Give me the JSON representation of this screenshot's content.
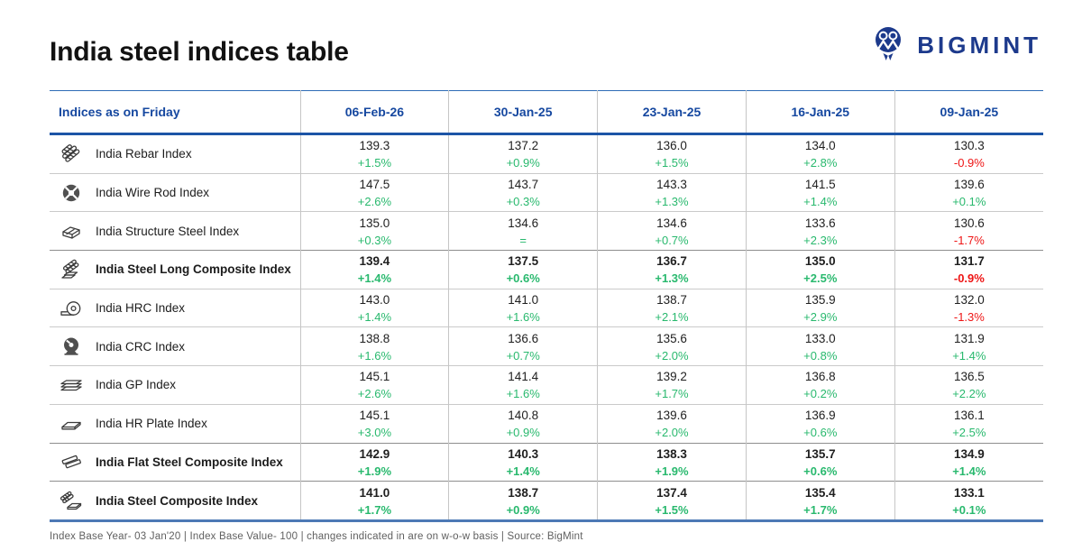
{
  "title": "India steel indices table",
  "logo_text": "BIGMINT",
  "footnote": "Index Base Year- 03 Jan'20 | Index Base Value- 100 | changes indicated in are on w-o-w basis | Source: BigMint",
  "colors": {
    "brand_blue": "#1d3a8c",
    "header_blue": "#1648a0",
    "positive_green": "#29b96e",
    "negative_red": "#ee1515"
  },
  "chart_data": {
    "type": "table",
    "title": "India steel indices table",
    "header": {
      "label": "Indices as on Friday",
      "dates": [
        "06-Feb-26",
        "30-Jan-25",
        "23-Jan-25",
        "16-Jan-25",
        "09-Jan-25"
      ]
    },
    "rows": [
      {
        "label": "India Rebar Index",
        "icon": "rebar-icon",
        "bold": false,
        "values": [
          139.3,
          137.2,
          136.0,
          134.0,
          130.3
        ],
        "changes": [
          "+1.5%",
          "+0.9%",
          "+1.5%",
          "+2.8%",
          "-0.9%"
        ]
      },
      {
        "label": "India Wire Rod Index",
        "icon": "wire-rod-coil-icon",
        "bold": false,
        "values": [
          147.5,
          143.7,
          143.3,
          141.5,
          139.6
        ],
        "changes": [
          "+2.6%",
          "+0.3%",
          "+1.3%",
          "+1.4%",
          "+0.1%"
        ]
      },
      {
        "label": "India Structure Steel Index",
        "icon": "structure-steel-icon",
        "bold": false,
        "values": [
          135.0,
          134.6,
          134.6,
          133.6,
          130.6
        ],
        "changes": [
          "+0.3%",
          "=",
          "+0.7%",
          "+2.3%",
          "-1.7%"
        ]
      },
      {
        "label": "India Steel Long Composite Index",
        "icon": "long-steel-stack-icon",
        "bold": true,
        "values": [
          139.4,
          137.5,
          136.7,
          135.0,
          131.7
        ],
        "changes": [
          "+1.4%",
          "+0.6%",
          "+1.3%",
          "+2.5%",
          "-0.9%"
        ]
      },
      {
        "label": "India HRC Index",
        "icon": "hrc-coil-icon",
        "bold": false,
        "values": [
          143.0,
          141.0,
          138.7,
          135.9,
          132.0
        ],
        "changes": [
          "+1.4%",
          "+1.6%",
          "+2.1%",
          "+2.9%",
          "-1.3%"
        ]
      },
      {
        "label": "India CRC Index",
        "icon": "crc-coil-icon",
        "bold": false,
        "values": [
          138.8,
          136.6,
          135.6,
          133.0,
          131.9
        ],
        "changes": [
          "+1.6%",
          "+0.7%",
          "+2.0%",
          "+0.8%",
          "+1.4%"
        ]
      },
      {
        "label": "India GP Index",
        "icon": "gp-sheets-icon",
        "bold": false,
        "values": [
          145.1,
          141.4,
          139.2,
          136.8,
          136.5
        ],
        "changes": [
          "+2.6%",
          "+1.6%",
          "+1.7%",
          "+0.2%",
          "+2.2%"
        ]
      },
      {
        "label": "India HR Plate Index",
        "icon": "hr-plate-icon",
        "bold": false,
        "values": [
          145.1,
          140.8,
          139.6,
          136.9,
          136.1
        ],
        "changes": [
          "+3.0%",
          "+0.9%",
          "+2.0%",
          "+0.6%",
          "+2.5%"
        ]
      },
      {
        "label": "India Flat Steel Composite Index",
        "icon": "flat-steel-stack-icon",
        "bold": true,
        "values": [
          142.9,
          140.3,
          138.3,
          135.7,
          134.9
        ],
        "changes": [
          "+1.9%",
          "+1.4%",
          "+1.9%",
          "+0.6%",
          "+1.4%"
        ]
      },
      {
        "label": "India Steel Composite Index",
        "icon": "steel-composite-icon",
        "bold": true,
        "values": [
          141.0,
          138.7,
          137.4,
          135.4,
          133.1
        ],
        "changes": [
          "+1.7%",
          "+0.9%",
          "+1.5%",
          "+1.7%",
          "+0.1%"
        ]
      }
    ]
  }
}
